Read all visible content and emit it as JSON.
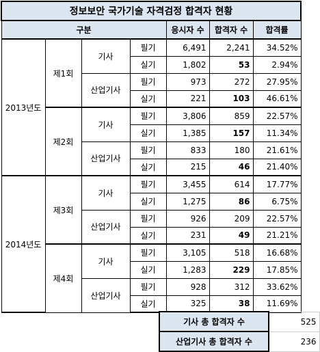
{
  "title": "정보보안 국가기술 자격검정 합격자 현황",
  "headers": {
    "category": "구분",
    "applicants": "응시자 수",
    "passers": "합격자 수",
    "pass_rate": "합격률"
  },
  "labels": {
    "y2013": "2013년도",
    "y2014": "2014년도",
    "r1": "제1회",
    "r2": "제2회",
    "r3": "제3회",
    "r4": "제4회",
    "gisa": "기사",
    "sanup": "산업기사",
    "written": "필기",
    "practical": "실기"
  },
  "rows": [
    {
      "applicants": "6,491",
      "passers": "2,241",
      "rate": "34.52%"
    },
    {
      "applicants": "1,802",
      "passers": "53",
      "rate": "2.94%"
    },
    {
      "applicants": "973",
      "passers": "272",
      "rate": "27.95%"
    },
    {
      "applicants": "221",
      "passers": "103",
      "rate": "46.61%"
    },
    {
      "applicants": "3,806",
      "passers": "859",
      "rate": "22.57%"
    },
    {
      "applicants": "1,385",
      "passers": "157",
      "rate": "11.34%"
    },
    {
      "applicants": "833",
      "passers": "180",
      "rate": "21.61%"
    },
    {
      "applicants": "215",
      "passers": "46",
      "rate": "21.40%"
    },
    {
      "applicants": "3,455",
      "passers": "614",
      "rate": "17.77%"
    },
    {
      "applicants": "1,275",
      "passers": "86",
      "rate": "6.75%"
    },
    {
      "applicants": "926",
      "passers": "209",
      "rate": "22.57%"
    },
    {
      "applicants": "231",
      "passers": "49",
      "rate": "21.21%"
    },
    {
      "applicants": "3,105",
      "passers": "518",
      "rate": "16.68%"
    },
    {
      "applicants": "1,283",
      "passers": "229",
      "rate": "17.85%"
    },
    {
      "applicants": "928",
      "passers": "312",
      "rate": "33.62%"
    },
    {
      "applicants": "325",
      "passers": "38",
      "rate": "11.69%"
    }
  ],
  "summary": [
    {
      "label": "기사 총 합격자 수",
      "value": "525"
    },
    {
      "label": "산업기사 총 합격자 수",
      "value": "236"
    }
  ],
  "colors": {
    "header_bg": "#dce6f1",
    "border": "#000000"
  }
}
